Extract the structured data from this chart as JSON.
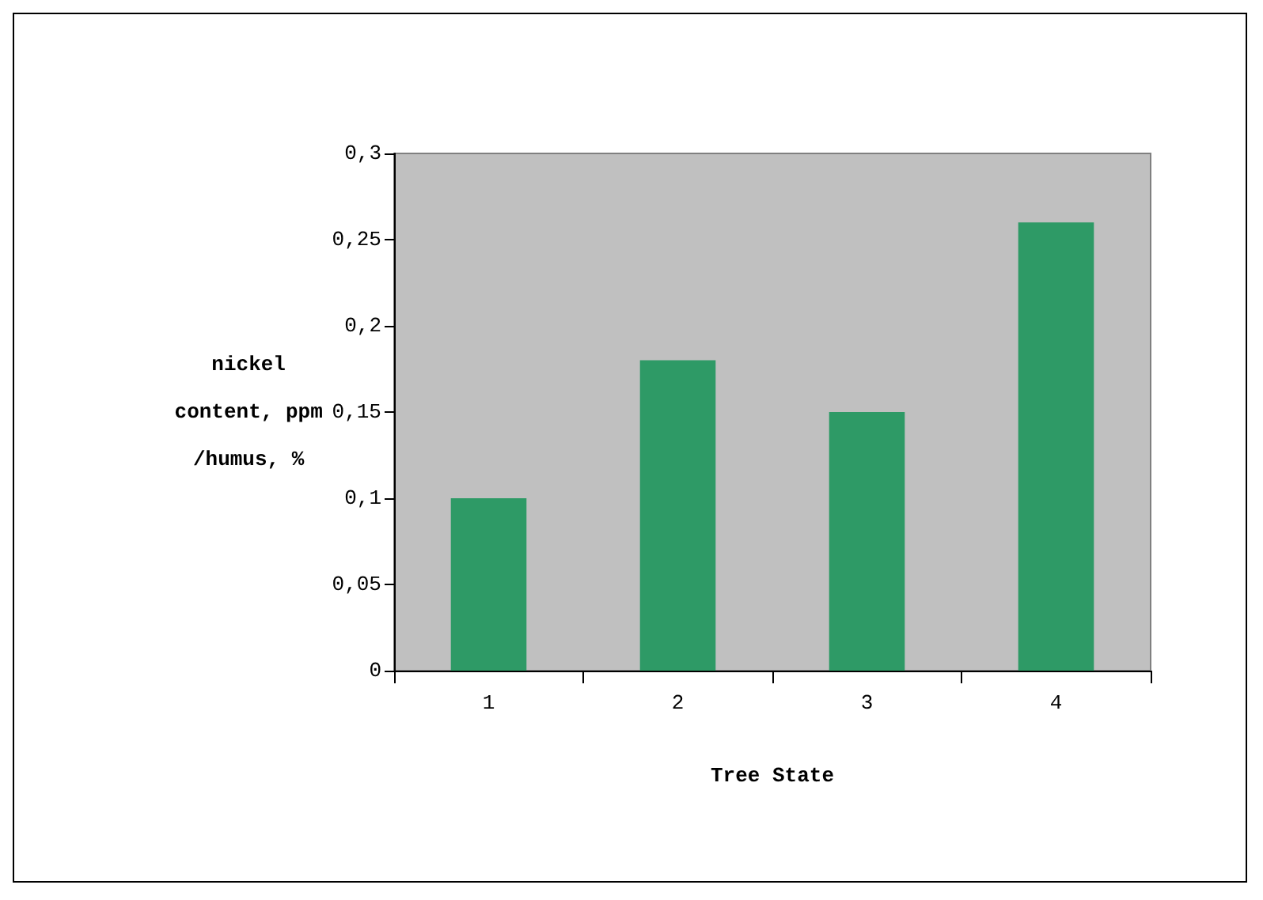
{
  "chart_data": {
    "type": "bar",
    "xlabel": "Tree State",
    "ylabel": "nickel content, ppm /humus, %",
    "categories": [
      "1",
      "2",
      "3",
      "4"
    ],
    "values": [
      0.1,
      0.18,
      0.15,
      0.26
    ],
    "color": "#2e9a66",
    "ylim": [
      0,
      0.3
    ],
    "yticks": [
      {
        "value": 0,
        "label": "0"
      },
      {
        "value": 0.05,
        "label": "0,05"
      },
      {
        "value": 0.1,
        "label": "0,1"
      },
      {
        "value": 0.15,
        "label": "0,15"
      },
      {
        "value": 0.2,
        "label": "0,2"
      },
      {
        "value": 0.25,
        "label": "0,25"
      },
      {
        "value": 0.3,
        "label": "0,3"
      }
    ],
    "grid": false
  }
}
